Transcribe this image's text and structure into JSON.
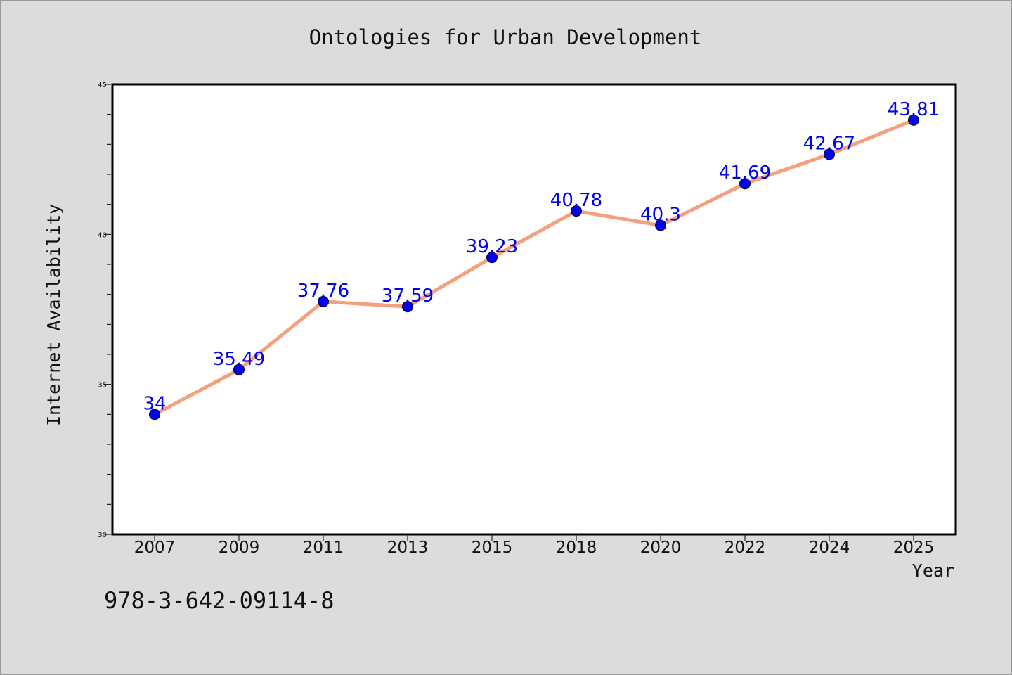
{
  "chart_data": {
    "type": "line",
    "title": "Ontologies for Urban Development",
    "xlabel": "Year",
    "ylabel": "Internet Availability",
    "categories": [
      "2007",
      "2009",
      "2011",
      "2013",
      "2015",
      "2018",
      "2020",
      "2022",
      "2024",
      "2025"
    ],
    "series": [
      {
        "values": [
          34,
          35.49,
          37.76,
          37.59,
          39.23,
          40.78,
          40.3,
          41.69,
          42.67,
          43.81
        ],
        "labels": [
          "34",
          "35.49",
          "37.76",
          "37.59",
          "39.23",
          "40.78",
          "40.3",
          "41.69",
          "42.67",
          "43.81"
        ]
      }
    ],
    "ylim": [
      30,
      45
    ],
    "yticks": [
      "30",
      "35",
      "40",
      "45"
    ],
    "grid": false,
    "colors": {
      "line": "#f4a07f",
      "marker": "#0000ee",
      "label": "#0000ee",
      "background": "#dcdcdc",
      "plot_background": "#ffffff"
    }
  },
  "footer": {
    "isbn": "978-3-642-09114-8"
  }
}
